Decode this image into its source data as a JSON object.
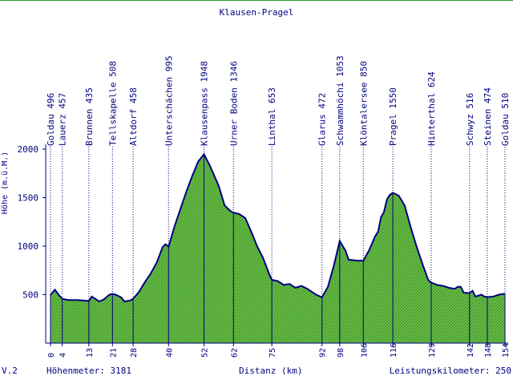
{
  "chart_data": {
    "type": "area",
    "title": "Klausen-Pragel",
    "ylabel": "Höhe (m.ü.M.)",
    "xlabel": "Distanz (km)",
    "xlim": [
      0,
      154
    ],
    "ylim": [
      0,
      2000
    ],
    "y_ticks": [
      500,
      1000,
      1500,
      2000
    ],
    "x_ticks": [
      0,
      4,
      13,
      21,
      28,
      40,
      52,
      62,
      75,
      92,
      98,
      106,
      116,
      129,
      142,
      148,
      154
    ],
    "grid": false,
    "fill_color": "#66bb44",
    "line_color": "#000080",
    "waypoints": [
      {
        "label": "Goldau 496",
        "km": 0
      },
      {
        "label": "Lauerz 457",
        "km": 4
      },
      {
        "label": "Brunnen 435",
        "km": 13
      },
      {
        "label": "Tellskapelle 508",
        "km": 21
      },
      {
        "label": "Altdorf 458",
        "km": 28
      },
      {
        "label": "Unterschächen 995",
        "km": 40
      },
      {
        "label": "Klausenpass 1948",
        "km": 52
      },
      {
        "label": "Urner Boden 1346",
        "km": 62
      },
      {
        "label": "Linthal 653",
        "km": 75
      },
      {
        "label": "Glarus 472",
        "km": 92
      },
      {
        "label": "Schwammhöchi 1053",
        "km": 98
      },
      {
        "label": "Klöntalersee 850",
        "km": 106
      },
      {
        "label": "Pragel 1550",
        "km": 116
      },
      {
        "label": "Hinterthal 624",
        "km": 129
      },
      {
        "label": "Schwyz 516",
        "km": 142
      },
      {
        "label": "Steinen 474",
        "km": 148
      },
      {
        "label": "Goldau 510",
        "km": 154
      }
    ],
    "profile": [
      [
        0,
        496
      ],
      [
        1.5,
        550
      ],
      [
        3,
        490
      ],
      [
        4,
        457
      ],
      [
        6,
        445
      ],
      [
        9,
        445
      ],
      [
        11,
        440
      ],
      [
        13,
        435
      ],
      [
        14,
        480
      ],
      [
        15,
        460
      ],
      [
        16.5,
        430
      ],
      [
        18,
        450
      ],
      [
        20,
        500
      ],
      [
        21,
        508
      ],
      [
        22,
        500
      ],
      [
        24,
        470
      ],
      [
        25,
        430
      ],
      [
        27,
        440
      ],
      [
        28,
        458
      ],
      [
        30,
        530
      ],
      [
        32,
        630
      ],
      [
        34,
        720
      ],
      [
        36,
        830
      ],
      [
        38,
        990
      ],
      [
        39,
        1020
      ],
      [
        40,
        995
      ],
      [
        42,
        1200
      ],
      [
        44,
        1380
      ],
      [
        46,
        1560
      ],
      [
        48,
        1720
      ],
      [
        50,
        1870
      ],
      [
        52,
        1948
      ],
      [
        54,
        1830
      ],
      [
        57,
        1620
      ],
      [
        59,
        1420
      ],
      [
        61,
        1360
      ],
      [
        62,
        1346
      ],
      [
        64,
        1330
      ],
      [
        66,
        1290
      ],
      [
        68,
        1150
      ],
      [
        70,
        1000
      ],
      [
        72,
        880
      ],
      [
        74,
        720
      ],
      [
        75,
        653
      ],
      [
        77,
        640
      ],
      [
        79,
        600
      ],
      [
        81,
        610
      ],
      [
        83,
        570
      ],
      [
        85,
        590
      ],
      [
        87,
        560
      ],
      [
        89,
        520
      ],
      [
        90,
        500
      ],
      [
        92,
        472
      ],
      [
        94,
        580
      ],
      [
        96,
        800
      ],
      [
        98,
        1053
      ],
      [
        100,
        950
      ],
      [
        101,
        860
      ],
      [
        104,
        850
      ],
      [
        106,
        850
      ],
      [
        108,
        960
      ],
      [
        110,
        1100
      ],
      [
        111,
        1150
      ],
      [
        112,
        1300
      ],
      [
        113,
        1350
      ],
      [
        114,
        1480
      ],
      [
        115,
        1530
      ],
      [
        116,
        1550
      ],
      [
        118,
        1520
      ],
      [
        120,
        1420
      ],
      [
        122,
        1200
      ],
      [
        124,
        1000
      ],
      [
        126,
        820
      ],
      [
        128,
        650
      ],
      [
        129,
        624
      ],
      [
        131,
        600
      ],
      [
        133,
        590
      ],
      [
        135,
        570
      ],
      [
        137,
        560
      ],
      [
        138,
        580
      ],
      [
        139,
        580
      ],
      [
        140,
        520
      ],
      [
        142,
        516
      ],
      [
        143,
        540
      ],
      [
        144,
        480
      ],
      [
        146,
        500
      ],
      [
        147,
        480
      ],
      [
        148,
        474
      ],
      [
        150,
        480
      ],
      [
        152,
        500
      ],
      [
        154,
        510
      ]
    ]
  },
  "footer": {
    "version": "V.2",
    "hoehenmeter": "Höhenmeter: 3181",
    "distanz": "Distanz (km)",
    "leistung": "Leistungskilometer: 250"
  }
}
